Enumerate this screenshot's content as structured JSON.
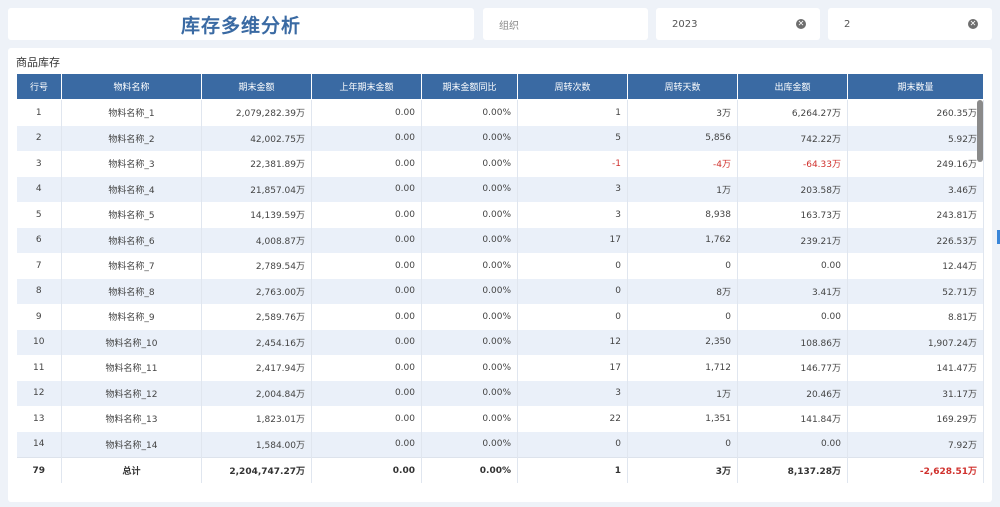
{
  "header": {
    "title": "库存多维分析"
  },
  "filters": {
    "org_placeholder": "组织",
    "year_value": "2023",
    "month_value": "2"
  },
  "panel": {
    "title": "商品库存"
  },
  "table": {
    "columns": [
      "行号",
      "物料名称",
      "期末金额",
      "上年期末金额",
      "期末金额同比",
      "周转次数",
      "周转天数",
      "出库金额",
      "期末数量"
    ],
    "rows": [
      [
        "1",
        "物料名称_1",
        "2,079,282.39万",
        "0.00",
        "0.00%",
        "1",
        "3万",
        "6,264.27万",
        "260.35万"
      ],
      [
        "2",
        "物料名称_2",
        "42,002.75万",
        "0.00",
        "0.00%",
        "5",
        "5,856",
        "742.22万",
        "5.92万"
      ],
      [
        "3",
        "物料名称_3",
        "22,381.89万",
        "0.00",
        "0.00%",
        "-1",
        "-4万",
        "-64.33万",
        "249.16万"
      ],
      [
        "4",
        "物料名称_4",
        "21,857.04万",
        "0.00",
        "0.00%",
        "3",
        "1万",
        "203.58万",
        "3.46万"
      ],
      [
        "5",
        "物料名称_5",
        "14,139.59万",
        "0.00",
        "0.00%",
        "3",
        "8,938",
        "163.73万",
        "243.81万"
      ],
      [
        "6",
        "物料名称_6",
        "4,008.87万",
        "0.00",
        "0.00%",
        "17",
        "1,762",
        "239.21万",
        "226.53万"
      ],
      [
        "7",
        "物料名称_7",
        "2,789.54万",
        "0.00",
        "0.00%",
        "0",
        "0",
        "0.00",
        "12.44万"
      ],
      [
        "8",
        "物料名称_8",
        "2,763.00万",
        "0.00",
        "0.00%",
        "0",
        "8万",
        "3.41万",
        "52.71万"
      ],
      [
        "9",
        "物料名称_9",
        "2,589.76万",
        "0.00",
        "0.00%",
        "0",
        "0",
        "0.00",
        "8.81万"
      ],
      [
        "10",
        "物料名称_10",
        "2,454.16万",
        "0.00",
        "0.00%",
        "12",
        "2,350",
        "108.86万",
        "1,907.24万"
      ],
      [
        "11",
        "物料名称_11",
        "2,417.94万",
        "0.00",
        "0.00%",
        "17",
        "1,712",
        "146.77万",
        "141.47万"
      ],
      [
        "12",
        "物料名称_12",
        "2,004.84万",
        "0.00",
        "0.00%",
        "3",
        "1万",
        "20.46万",
        "31.17万"
      ],
      [
        "13",
        "物料名称_13",
        "1,823.01万",
        "0.00",
        "0.00%",
        "22",
        "1,351",
        "141.84万",
        "169.29万"
      ],
      [
        "14",
        "物料名称_14",
        "1,584.00万",
        "0.00",
        "0.00%",
        "0",
        "0",
        "0.00",
        "7.92万"
      ]
    ],
    "footer": [
      "79",
      "总计",
      "2,204,747.27万",
      "0.00",
      "0.00%",
      "1",
      "3万",
      "8,137.28万",
      "-2,628.51万"
    ]
  },
  "colors": {
    "header_bg": "#3a6aa3",
    "negative": "#d0312d",
    "stripe": "#eaf0f9"
  },
  "icons": {
    "clear": "clear-circle-icon"
  }
}
